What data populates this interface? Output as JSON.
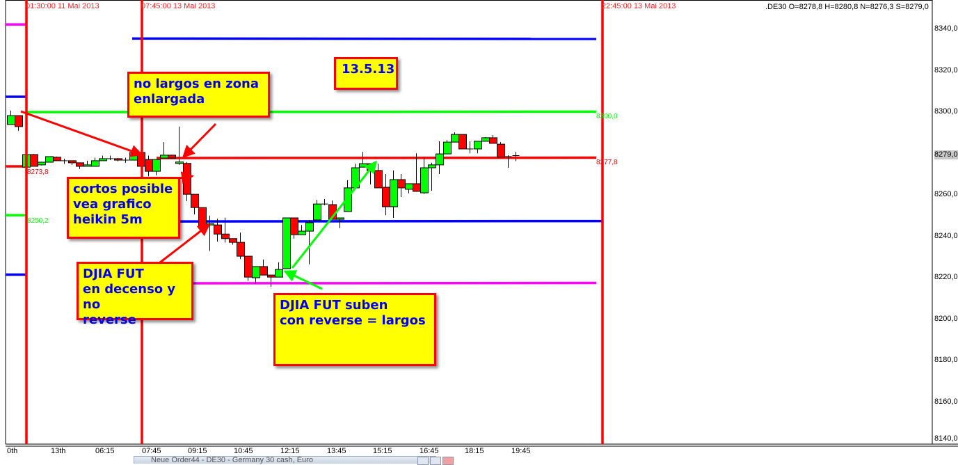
{
  "header": {
    "quote": ".DE30 O=8278,8 H=8280,8 N=8276,3 S=8279,0"
  },
  "price_axis": {
    "labels": [
      "8340,0",
      "8320,0",
      "8300,0",
      "8279,0",
      "8260,0",
      "8240,0",
      "8220,0",
      "8200,0",
      "8180,0",
      "8160,0",
      "8140,0"
    ]
  },
  "taskbar": {
    "window_title": "Neue Order44 - DE30 - Germany 30 cash, Euro"
  },
  "annotations": [
    {
      "text_lines": [
        "no largos en zona",
        "enlargada"
      ]
    },
    {
      "text_lines": [
        "13.5.13"
      ]
    },
    {
      "text_lines": [
        "cortos posible",
        "vea grafico",
        "heikin 5m"
      ]
    },
    {
      "text_lines": [
        "DJIA FUT",
        "en decenso y no",
        "reverse"
      ]
    },
    {
      "text_lines": [
        "DJIA FUT suben",
        "con reverse = largos"
      ]
    }
  ],
  "colors": {
    "up": "#00ff00",
    "down": "#ff0000",
    "vline": "#ff0000",
    "note_bg": "#ffff00",
    "note_text": "#0000ee",
    "blue": "#0000ff",
    "green": "#00ff00",
    "magenta": "#ff00ff",
    "red": "#ff0000"
  },
  "chart_data": {
    "type": "candlestick",
    "instrument": ".DE30",
    "ylim": [
      8140,
      8345
    ],
    "y_ticks": [
      8340,
      8320,
      8300,
      8280,
      8260,
      8240,
      8220,
      8200,
      8180,
      8160,
      8140
    ],
    "current_price_label": "8279,0",
    "x_tick_labels": [
      "0th",
      "13th",
      "06:15",
      "07:45",
      "09:15",
      "10:45",
      "12:15",
      "13:45",
      "15:15",
      "16:45",
      "18:15",
      "19:45"
    ],
    "grid": false,
    "vertical_lines": [
      {
        "label": "01:30:00 11 Mai 2013"
      },
      {
        "label": "07:45:00 13 Mai 2013"
      },
      {
        "label": "22:45:00 13 Mai 2013"
      }
    ],
    "levels": [
      {
        "price": 8335.5,
        "color": "blue",
        "label": ""
      },
      {
        "price": 8300.0,
        "color": "green",
        "label": "8300,0"
      },
      {
        "price": 8277.8,
        "color": "red",
        "label": "8277,8"
      },
      {
        "price": 8247.2,
        "color": "blue",
        "label": ""
      },
      {
        "price": 8217.3,
        "color": "magenta",
        "label": ""
      }
    ],
    "prior_levels": [
      {
        "price": 8342.3,
        "color": "magenta",
        "label": ""
      },
      {
        "price": 8307.4,
        "color": "blue",
        "label": ""
      },
      {
        "price": 8273.8,
        "color": "red",
        "label": "8273,8"
      },
      {
        "price": 8250.2,
        "color": "green",
        "label": "8250,2"
      },
      {
        "price": 8221.5,
        "color": "blue",
        "label": ""
      }
    ],
    "candles": [
      {
        "o": 8294.0,
        "h": 8300.7,
        "l": 8294.0,
        "c": 8298.3
      },
      {
        "o": 8298.3,
        "h": 8298.3,
        "l": 8291.0,
        "c": 8293.0
      },
      {
        "o": 8273.4,
        "h": 8279.5,
        "l": 8273.4,
        "c": 8279.5
      },
      {
        "o": 8279.5,
        "h": 8279.8,
        "l": 8273.8,
        "c": 8273.8
      },
      {
        "o": 8274.5,
        "h": 8276.0,
        "l": 8274.2,
        "c": 8275.8
      },
      {
        "o": 8275.8,
        "h": 8278.5,
        "l": 8275.8,
        "c": 8278.5
      },
      {
        "o": 8278.2,
        "h": 8278.5,
        "l": 8276.5,
        "c": 8276.5
      },
      {
        "o": 8276.5,
        "h": 8277.5,
        "l": 8275.0,
        "c": 8276.5
      },
      {
        "o": 8276.5,
        "h": 8276.5,
        "l": 8274.5,
        "c": 8275.5
      },
      {
        "o": 8275.5,
        "h": 8275.5,
        "l": 8272.5,
        "c": 8273.8
      },
      {
        "o": 8273.8,
        "h": 8276.5,
        "l": 8273.8,
        "c": 8274.5
      },
      {
        "o": 8273.8,
        "h": 8278.0,
        "l": 8273.8,
        "c": 8276.5
      },
      {
        "o": 8276.5,
        "h": 8279.0,
        "l": 8276.5,
        "c": 8277.5
      },
      {
        "o": 8277.5,
        "h": 8279.0,
        "l": 8276.8,
        "c": 8277.5
      },
      {
        "o": 8277.5,
        "h": 8277.8,
        "l": 8276.2,
        "c": 8276.8
      },
      {
        "o": 8276.8,
        "h": 8278.0,
        "l": 8275.5,
        "c": 8276.8
      },
      {
        "o": 8276.8,
        "h": 8280.8,
        "l": 8276.8,
        "c": 8280.5
      },
      {
        "o": 8280.5,
        "h": 8280.8,
        "l": 8273.8,
        "c": 8273.8
      },
      {
        "o": 8277.1,
        "h": 8279.0,
        "l": 8269.0,
        "c": 8271.4
      },
      {
        "o": 8271.4,
        "h": 8277.1,
        "l": 8269.5,
        "c": 8277.1
      },
      {
        "o": 8277.8,
        "h": 8285.5,
        "l": 8277.8,
        "c": 8279.2
      },
      {
        "o": 8279.2,
        "h": 8279.2,
        "l": 8277.5,
        "c": 8277.8
      },
      {
        "o": 8275.2,
        "h": 8293.0,
        "l": 8274.5,
        "c": 8275.9
      },
      {
        "o": 8275.2,
        "h": 8275.9,
        "l": 8257.0,
        "c": 8260.3
      },
      {
        "o": 8260.3,
        "h": 8260.3,
        "l": 8250.6,
        "c": 8253.9
      },
      {
        "o": 8253.9,
        "h": 8253.9,
        "l": 8243.0,
        "c": 8244.5
      },
      {
        "o": 8245.5,
        "h": 8250.0,
        "l": 8233.0,
        "c": 8246.1
      },
      {
        "o": 8245.5,
        "h": 8248.5,
        "l": 8237.5,
        "c": 8241.1
      },
      {
        "o": 8241.1,
        "h": 8249.0,
        "l": 8237.0,
        "c": 8238.9
      },
      {
        "o": 8238.9,
        "h": 8238.9,
        "l": 8236.0,
        "c": 8237.1
      },
      {
        "o": 8237.1,
        "h": 8241.8,
        "l": 8229.0,
        "c": 8230.4
      },
      {
        "o": 8230.4,
        "h": 8230.4,
        "l": 8218.5,
        "c": 8220.3
      },
      {
        "o": 8220.0,
        "h": 8225.4,
        "l": 8217.0,
        "c": 8225.4
      },
      {
        "o": 8225.4,
        "h": 8228.8,
        "l": 8221.3,
        "c": 8221.3
      },
      {
        "o": 8221.3,
        "h": 8221.3,
        "l": 8215.6,
        "c": 8220.3
      },
      {
        "o": 8220.3,
        "h": 8227.5,
        "l": 8220.3,
        "c": 8224.0
      },
      {
        "o": 8224.4,
        "h": 8248.9,
        "l": 8224.4,
        "c": 8248.9
      },
      {
        "o": 8248.9,
        "h": 8248.9,
        "l": 8238.9,
        "c": 8240.8
      },
      {
        "o": 8240.8,
        "h": 8245.5,
        "l": 8240.8,
        "c": 8242.5
      },
      {
        "o": 8242.5,
        "h": 8247.9,
        "l": 8226.5,
        "c": 8246.6
      },
      {
        "o": 8247.9,
        "h": 8257.6,
        "l": 8247.9,
        "c": 8255.6
      },
      {
        "o": 8255.6,
        "h": 8258.0,
        "l": 8255.0,
        "c": 8255.6
      },
      {
        "o": 8255.3,
        "h": 8257.3,
        "l": 8248.2,
        "c": 8248.2
      },
      {
        "o": 8248.2,
        "h": 8248.9,
        "l": 8243.9,
        "c": 8248.9
      },
      {
        "o": 8252.0,
        "h": 8267.1,
        "l": 8252.0,
        "c": 8263.4
      },
      {
        "o": 8263.4,
        "h": 8275.1,
        "l": 8263.4,
        "c": 8273.1
      },
      {
        "o": 8273.4,
        "h": 8280.8,
        "l": 8273.4,
        "c": 8275.1
      },
      {
        "o": 8275.1,
        "h": 8275.1,
        "l": 8265.1,
        "c": 8271.8
      },
      {
        "o": 8271.8,
        "h": 8275.1,
        "l": 8263.4,
        "c": 8263.4
      },
      {
        "o": 8263.7,
        "h": 8270.1,
        "l": 8250.2,
        "c": 8254.3
      },
      {
        "o": 8254.3,
        "h": 8271.8,
        "l": 8248.9,
        "c": 8267.4
      },
      {
        "o": 8267.4,
        "h": 8270.1,
        "l": 8259.0,
        "c": 8263.4
      },
      {
        "o": 8262.7,
        "h": 8265.4,
        "l": 8260.7,
        "c": 8265.4
      },
      {
        "o": 8265.4,
        "h": 8280.1,
        "l": 8261.7,
        "c": 8261.7
      },
      {
        "o": 8261.0,
        "h": 8278.5,
        "l": 8260.4,
        "c": 8273.1
      },
      {
        "o": 8273.1,
        "h": 8275.5,
        "l": 8262.0,
        "c": 8274.5
      },
      {
        "o": 8274.5,
        "h": 8285.9,
        "l": 8270.1,
        "c": 8279.8
      },
      {
        "o": 8279.8,
        "h": 8286.5,
        "l": 8279.8,
        "c": 8285.5
      },
      {
        "o": 8285.5,
        "h": 8290.2,
        "l": 8285.5,
        "c": 8289.2
      },
      {
        "o": 8289.2,
        "h": 8289.2,
        "l": 8282.2,
        "c": 8282.2
      },
      {
        "o": 8282.2,
        "h": 8285.9,
        "l": 8280.1,
        "c": 8282.2
      },
      {
        "o": 8282.2,
        "h": 8285.9,
        "l": 8280.1,
        "c": 8285.9
      },
      {
        "o": 8285.9,
        "h": 8287.9,
        "l": 8285.9,
        "c": 8287.6
      },
      {
        "o": 8287.6,
        "h": 8288.9,
        "l": 8284.9,
        "c": 8284.9
      },
      {
        "o": 8284.5,
        "h": 8285.5,
        "l": 8278.2,
        "c": 8278.2
      },
      {
        "o": 8278.5,
        "h": 8279.2,
        "l": 8273.1,
        "c": 8278.5
      },
      {
        "o": 8278.8,
        "h": 8280.8,
        "l": 8276.3,
        "c": 8279.0
      }
    ]
  }
}
